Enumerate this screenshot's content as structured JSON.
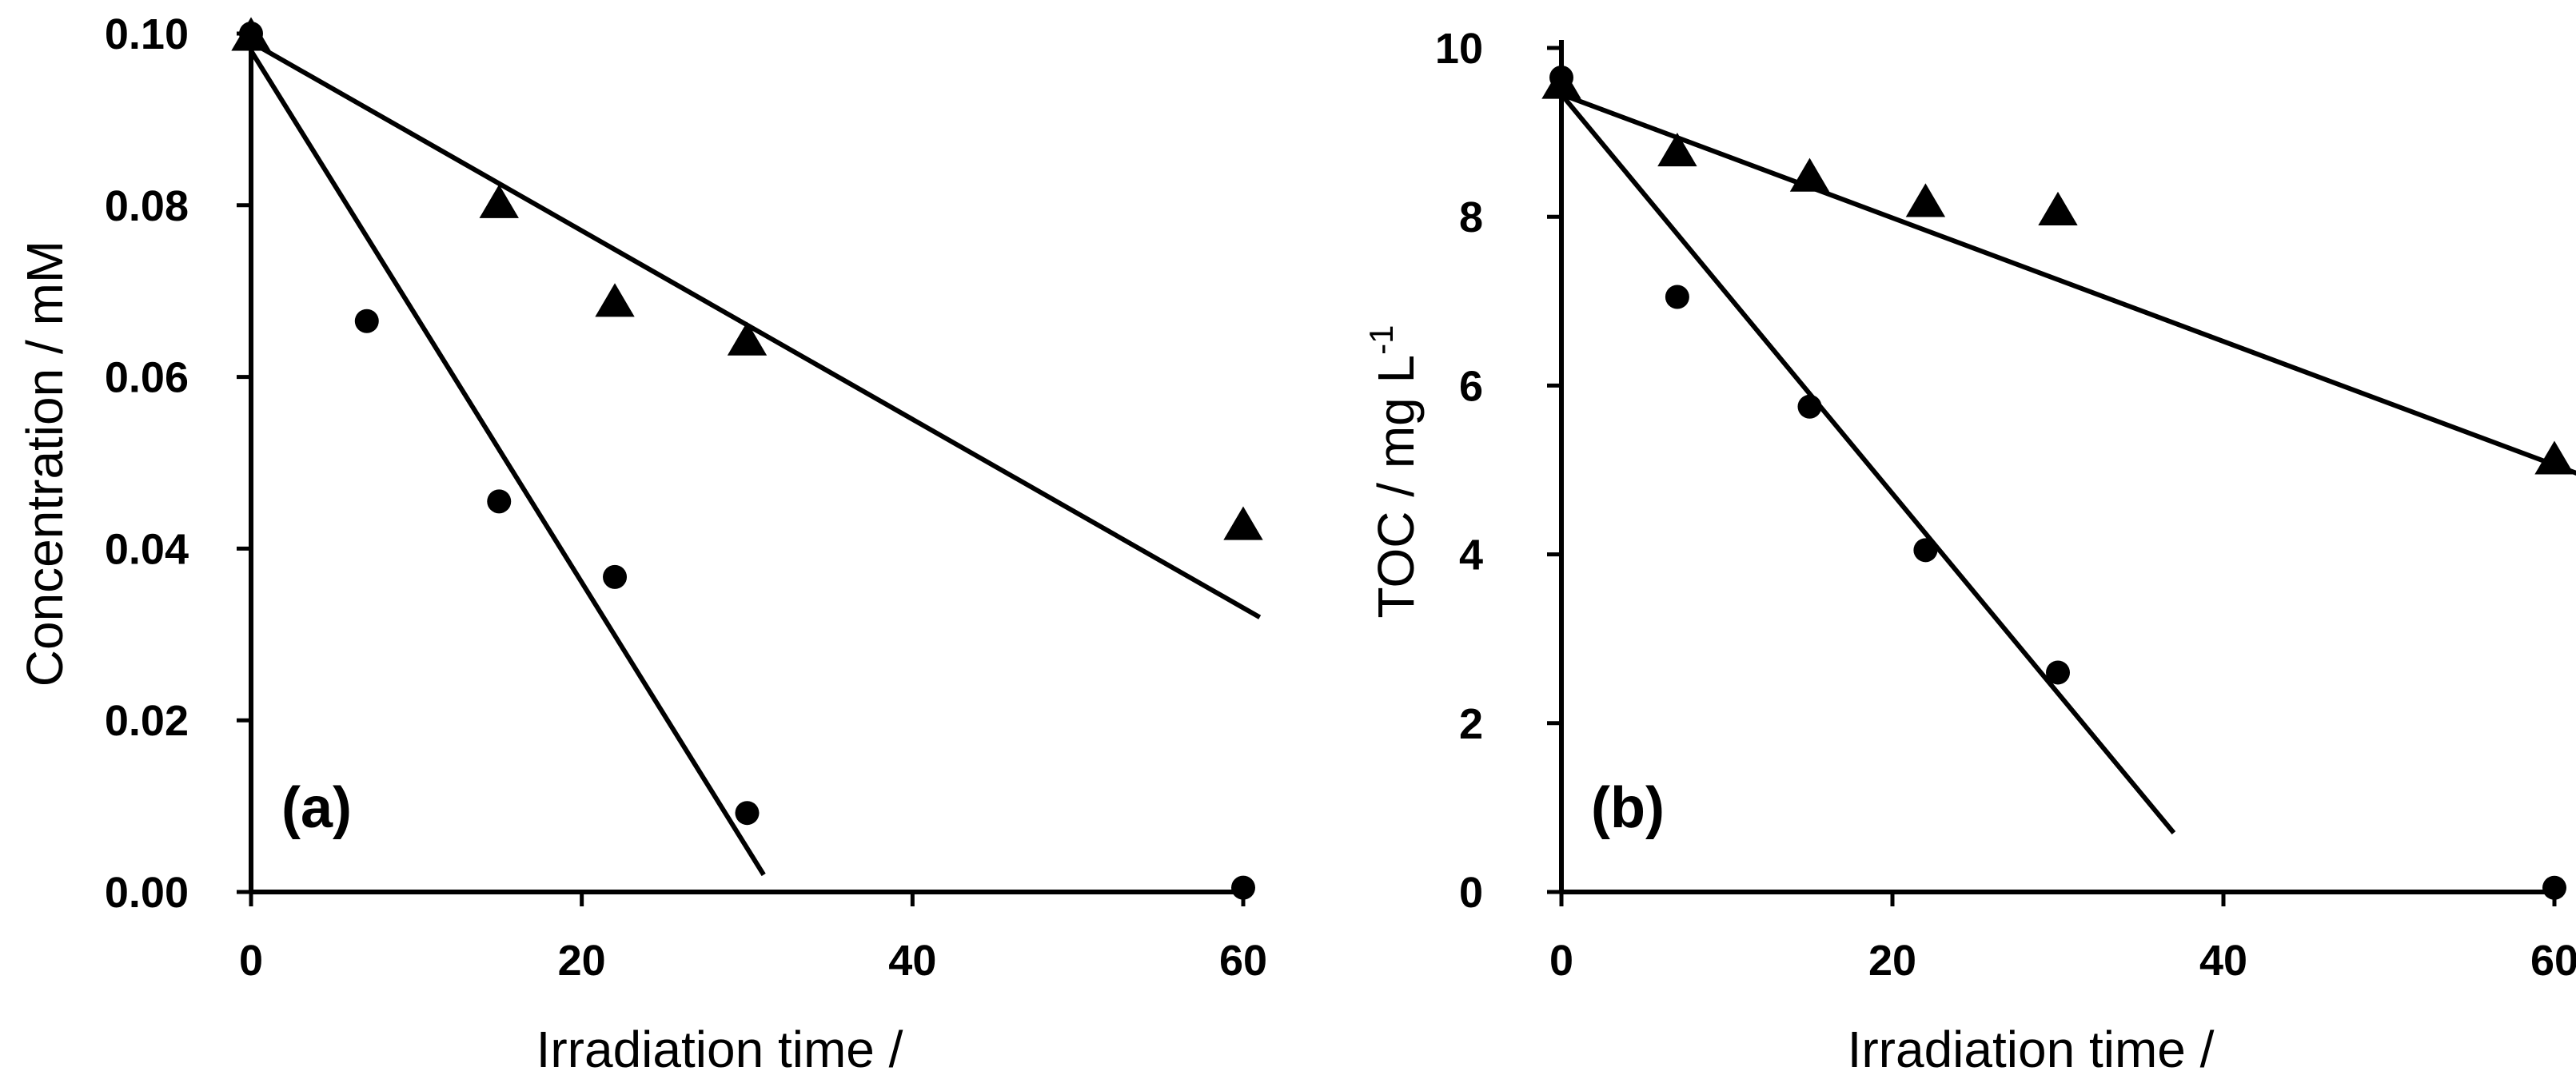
{
  "chart_data": [
    {
      "type": "scatter",
      "panel_label": "(a)",
      "xlabel": "Irradiation time /",
      "ylabel": "Concentration / mM",
      "xlim": [
        0,
        60
      ],
      "ylim": [
        0,
        0.1
      ],
      "x_ticks": [
        0,
        20,
        40,
        60
      ],
      "x_tick_labels": [
        "0",
        "20",
        "40",
        "60"
      ],
      "y_ticks": [
        0,
        0.02,
        0.04,
        0.06,
        0.08,
        0.1
      ],
      "y_tick_labels": [
        "0.00",
        "0.02",
        "0.04",
        "0.06",
        "0.08",
        "0.10"
      ],
      "grid": false,
      "series": [
        {
          "name": "circles",
          "marker": "circle",
          "x": [
            0,
            7,
            15,
            22,
            30,
            60
          ],
          "y": [
            0.1,
            0.0665,
            0.0455,
            0.0367,
            0.0092,
            0.0005
          ]
        },
        {
          "name": "triangles",
          "marker": "triangle",
          "x": [
            0,
            15,
            22,
            30,
            60
          ],
          "y": [
            0.0995,
            0.08,
            0.0685,
            0.064,
            0.0425
          ]
        }
      ],
      "fit_lines": [
        {
          "series": "circles",
          "x": [
            0,
            31
          ],
          "y": [
            0.098,
            0.002
          ]
        },
        {
          "series": "triangles",
          "x": [
            0,
            61
          ],
          "y": [
            0.099,
            0.032
          ]
        }
      ]
    },
    {
      "type": "scatter",
      "panel_label": "(b)",
      "xlabel": "Irradiation time /",
      "ylabel": "TOC / mg L",
      "ylabel_superscript": "-1",
      "xlim": [
        0,
        60
      ],
      "ylim": [
        0,
        10
      ],
      "x_ticks": [
        0,
        20,
        40,
        60
      ],
      "x_tick_labels": [
        "0",
        "20",
        "40",
        "60"
      ],
      "y_ticks": [
        0,
        2,
        4,
        6,
        8,
        10
      ],
      "y_tick_labels": [
        "0",
        "2",
        "4",
        "6",
        "8",
        "10"
      ],
      "grid": false,
      "series": [
        {
          "name": "circles",
          "marker": "circle",
          "x": [
            0,
            7,
            15,
            22,
            30,
            60
          ],
          "y": [
            9.65,
            7.05,
            5.75,
            4.05,
            2.6,
            0.05
          ]
        },
        {
          "name": "triangles",
          "marker": "triangle",
          "x": [
            0,
            7,
            15,
            22,
            30,
            60
          ],
          "y": [
            9.55,
            8.75,
            8.45,
            8.15,
            8.05,
            5.1
          ]
        }
      ],
      "fit_lines": [
        {
          "series": "circles",
          "x": [
            0,
            37
          ],
          "y": [
            9.45,
            0.7
          ]
        },
        {
          "series": "triangles",
          "x": [
            0,
            61.5
          ],
          "y": [
            9.45,
            4.95
          ]
        }
      ]
    }
  ]
}
